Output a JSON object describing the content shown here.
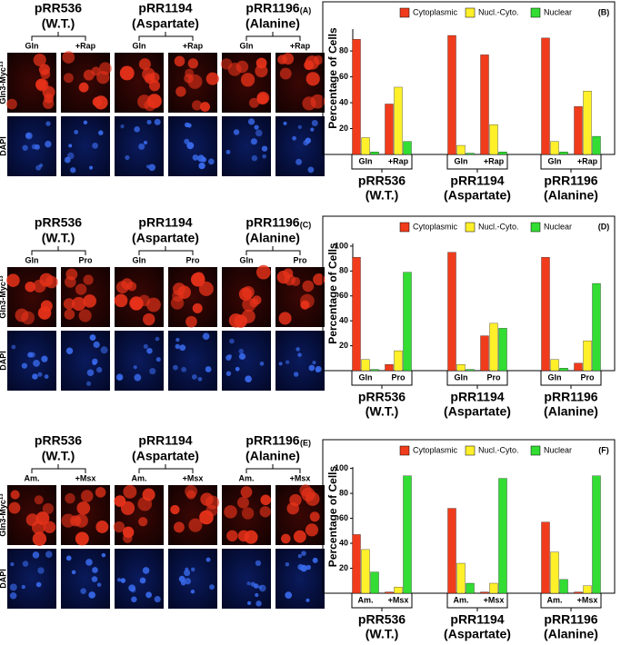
{
  "panels": [
    {
      "label": "(A)",
      "strains": [
        {
          "name": "pRR536",
          "detail": "(W.T.)"
        },
        {
          "name": "pRR1194",
          "detail": "(Aspartate)"
        },
        {
          "name": "pRR1196",
          "detail": "(Alanine)"
        }
      ],
      "conditions": [
        "Gln",
        "+Rap"
      ],
      "stain": "Gln3-Myc",
      "stain_sup": "13",
      "counterstain": "DAPI"
    },
    {
      "label": "(C)",
      "strains": [
        {
          "name": "pRR536",
          "detail": "(W.T.)"
        },
        {
          "name": "pRR1194",
          "detail": "(Aspartate)"
        },
        {
          "name": "pRR1196",
          "detail": "(Alanine)"
        }
      ],
      "conditions": [
        "Gln",
        "Pro"
      ],
      "stain": "Gln3-Myc",
      "stain_sup": "13",
      "counterstain": "DAPI"
    },
    {
      "label": "(E)",
      "strains": [
        {
          "name": "pRR536",
          "detail": "(W.T.)"
        },
        {
          "name": "pRR1194",
          "detail": "(Aspartate)"
        },
        {
          "name": "pRR1196",
          "detail": "(Alanine)"
        }
      ],
      "conditions": [
        "Am.",
        "+Msx"
      ],
      "stain": "Gln3-Myc",
      "stain_sup": "13",
      "counterstain": "DAPI"
    }
  ],
  "chart_data": [
    {
      "type": "bar",
      "panel_label": "(B)",
      "y_label": "Percentage of Cells",
      "categories": [
        "Gln",
        "+Rap",
        "Gln",
        "+Rap",
        "Gln",
        "+Rap"
      ],
      "groups": [
        {
          "name": "pRR536",
          "detail": "(W.T.)"
        },
        {
          "name": "pRR1194",
          "detail": "(Aspartate)"
        },
        {
          "name": "pRR1196",
          "detail": "(Alanine)"
        }
      ],
      "series": [
        {
          "name": "Cytoplasmic",
          "color": "#f03c1c",
          "values": [
            89,
            39,
            92,
            77,
            90,
            37
          ]
        },
        {
          "name": "Nucl.-Cyto.",
          "color": "#fff02a",
          "values": [
            13,
            52,
            7,
            23,
            10,
            49
          ]
        },
        {
          "name": "Nuclear",
          "color": "#33dd33",
          "values": [
            2,
            10,
            1,
            2,
            2,
            14
          ]
        }
      ],
      "ylim": [
        0,
        118
      ],
      "yticks": [
        20,
        40,
        60,
        80
      ]
    },
    {
      "type": "bar",
      "panel_label": "(D)",
      "y_label": "Percentage of Cells",
      "categories": [
        "Gln",
        "Pro",
        "Gln",
        "Pro",
        "Gln",
        "Pro"
      ],
      "groups": [
        {
          "name": "pRR536",
          "detail": "(W.T.)"
        },
        {
          "name": "pRR1194",
          "detail": "(Aspartate)"
        },
        {
          "name": "pRR1196",
          "detail": "(Alanine)"
        }
      ],
      "series": [
        {
          "name": "Cytoplasmic",
          "color": "#f03c1c",
          "values": [
            91,
            5,
            95,
            28,
            91,
            6
          ]
        },
        {
          "name": "Nucl.-Cyto.",
          "color": "#fff02a",
          "values": [
            9,
            16,
            5,
            38,
            9,
            24
          ]
        },
        {
          "name": "Nuclear",
          "color": "#33dd33",
          "values": [
            1,
            79,
            1,
            34,
            2,
            70
          ]
        }
      ],
      "ylim": [
        0,
        124
      ],
      "yticks": [
        20,
        40,
        60,
        80,
        100
      ]
    },
    {
      "type": "bar",
      "panel_label": "(F)",
      "y_label": "Percentage of Cells",
      "categories": [
        "Am.",
        "+Msx",
        "Am.",
        "+Msx",
        "Am.",
        "+Msx"
      ],
      "groups": [
        {
          "name": "pRR536",
          "detail": "(W.T.)"
        },
        {
          "name": "pRR1194",
          "detail": "(Aspartate)"
        },
        {
          "name": "pRR1196",
          "detail": "(Alanine)"
        }
      ],
      "series": [
        {
          "name": "Cytoplasmic",
          "color": "#f03c1c",
          "values": [
            47,
            1,
            68,
            1,
            57,
            1
          ]
        },
        {
          "name": "Nucl.-Cyto.",
          "color": "#fff02a",
          "values": [
            35,
            5,
            24,
            8,
            33,
            6
          ]
        },
        {
          "name": "Nuclear",
          "color": "#33dd33",
          "values": [
            17,
            94,
            8,
            92,
            11,
            94
          ]
        }
      ],
      "ylim": [
        0,
        123
      ],
      "yticks": [
        20,
        40,
        60,
        80,
        100
      ]
    }
  ]
}
